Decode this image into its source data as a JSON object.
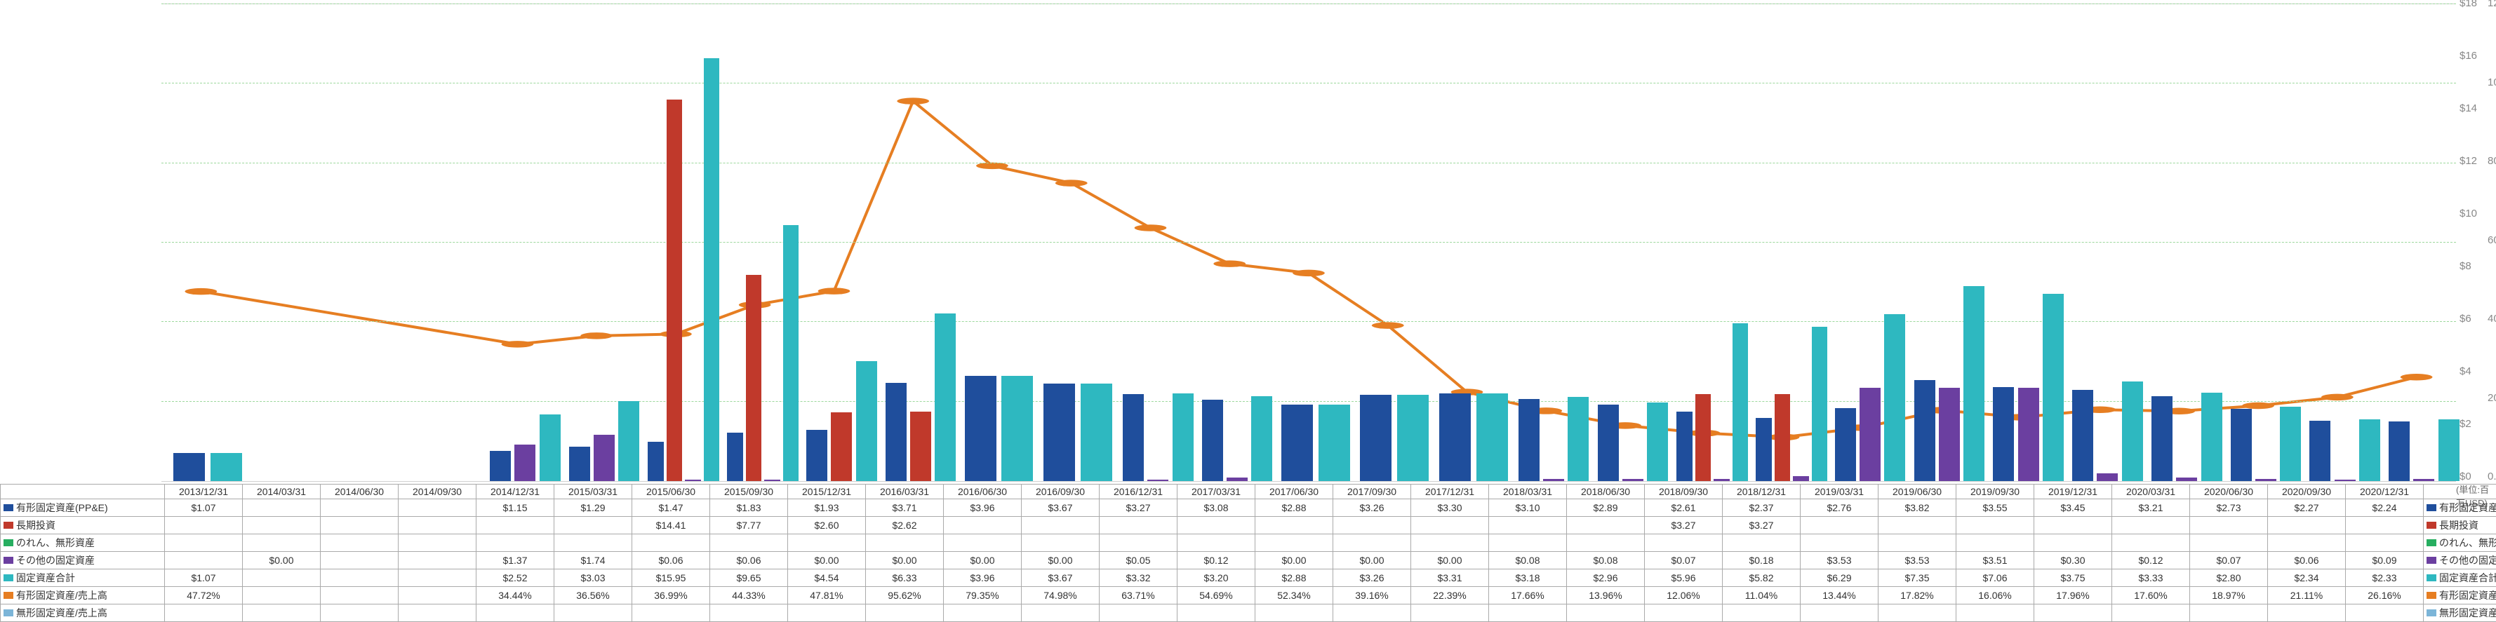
{
  "unit_label": "(単位:百万USD)",
  "colors": {
    "ppe": "#1f4e9c",
    "long_term_inv": "#c0392b",
    "goodwill": "#27ae60",
    "other_fixed": "#6b3fa0",
    "fixed_total": "#2eb8c0",
    "ppe_ratio": "#e67e22",
    "intang_ratio": "#7cb5d8",
    "gridline": "#9cd89c",
    "plot_bg": "#ffffff"
  },
  "left_axis": {
    "max": 18,
    "ticks": [
      0,
      2,
      4,
      6,
      8,
      10,
      12,
      14,
      16,
      18
    ],
    "prefix": "$"
  },
  "right_axis": {
    "max": 120,
    "ticks": [
      0,
      20,
      40,
      60,
      80,
      100,
      120
    ],
    "suffix": "%"
  },
  "series_labels": {
    "ppe": "有形固定資産(PP&E)",
    "long_term_inv": "長期投資",
    "goodwill": "のれん、無形資産",
    "other_fixed": "その他の固定資産",
    "fixed_total": "固定資産合計",
    "ppe_ratio": "有形固定資産/売上高",
    "intang_ratio": "無形固定資産/売上高"
  },
  "dates": [
    "2013/12/31",
    "2014/03/31",
    "2014/06/30",
    "2014/09/30",
    "2014/12/31",
    "2015/03/31",
    "2015/06/30",
    "2015/09/30",
    "2015/12/31",
    "2016/03/31",
    "2016/06/30",
    "2016/09/30",
    "2016/12/31",
    "2017/03/31",
    "2017/06/30",
    "2017/09/30",
    "2017/12/31",
    "2018/03/31",
    "2018/06/30",
    "2018/09/30",
    "2018/12/31",
    "2019/03/31",
    "2019/06/30",
    "2019/09/30",
    "2019/12/31",
    "2020/03/31",
    "2020/06/30",
    "2020/09/30",
    "2020/12/31"
  ],
  "data": {
    "ppe": [
      1.07,
      null,
      null,
      null,
      1.15,
      1.29,
      1.47,
      1.83,
      1.93,
      3.71,
      3.96,
      3.67,
      3.27,
      3.08,
      2.88,
      3.26,
      3.3,
      3.1,
      2.89,
      2.61,
      2.37,
      2.76,
      3.82,
      3.55,
      3.45,
      3.21,
      2.73,
      2.27,
      2.24
    ],
    "long_term_inv": [
      null,
      null,
      null,
      null,
      null,
      null,
      14.41,
      7.77,
      2.6,
      2.62,
      null,
      null,
      null,
      null,
      null,
      null,
      null,
      null,
      null,
      3.27,
      3.27,
      null,
      null,
      null,
      null,
      null,
      null,
      null,
      null
    ],
    "goodwill": [
      null,
      null,
      null,
      null,
      null,
      null,
      null,
      null,
      null,
      null,
      null,
      null,
      null,
      null,
      null,
      null,
      null,
      null,
      null,
      null,
      null,
      null,
      null,
      null,
      null,
      null,
      null,
      null,
      null
    ],
    "other_fixed": [
      null,
      0.0,
      null,
      null,
      1.37,
      1.74,
      0.06,
      0.06,
      0.0,
      0.0,
      0.0,
      0.0,
      0.05,
      0.12,
      0.0,
      0.0,
      0.0,
      0.08,
      0.08,
      0.07,
      0.18,
      3.53,
      3.53,
      3.51,
      0.3,
      0.12,
      0.07,
      0.06,
      0.09
    ],
    "fixed_total": [
      1.07,
      null,
      null,
      null,
      2.52,
      3.03,
      15.95,
      9.65,
      4.54,
      6.33,
      3.96,
      3.67,
      3.32,
      3.2,
      2.88,
      3.26,
      3.31,
      3.18,
      2.96,
      5.96,
      5.82,
      6.29,
      7.35,
      7.06,
      3.75,
      3.33,
      2.8,
      2.34,
      2.33
    ],
    "ppe_ratio": [
      47.72,
      null,
      null,
      null,
      34.44,
      36.56,
      36.99,
      44.33,
      47.81,
      95.62,
      79.35,
      74.98,
      63.71,
      54.69,
      52.34,
      39.16,
      22.39,
      17.66,
      13.96,
      12.06,
      11.04,
      13.44,
      17.82,
      16.06,
      17.96,
      17.6,
      18.97,
      21.11,
      26.16
    ],
    "intang_ratio": [
      null,
      null,
      null,
      null,
      null,
      null,
      null,
      null,
      null,
      null,
      null,
      null,
      null,
      null,
      null,
      null,
      null,
      null,
      null,
      null,
      null,
      null,
      null,
      null,
      null,
      null,
      null,
      null,
      null
    ]
  },
  "fontsize": {
    "axis": 15,
    "table": 14,
    "unit": 13
  }
}
